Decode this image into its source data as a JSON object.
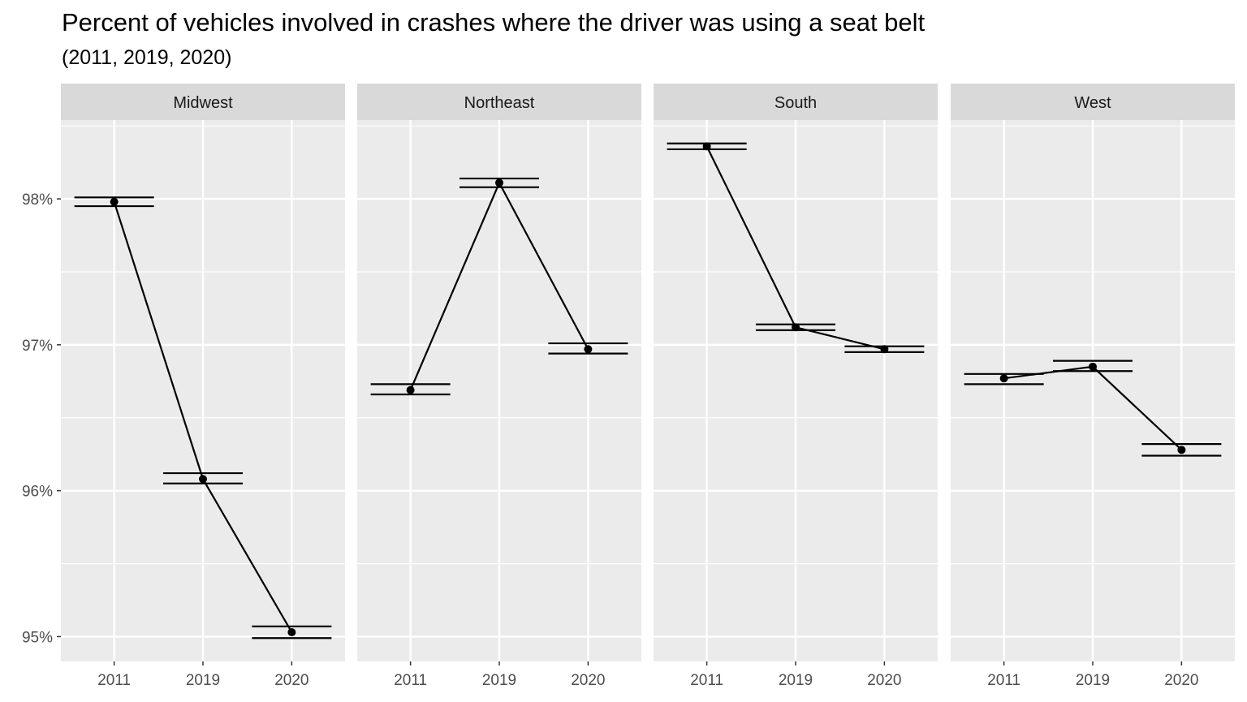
{
  "chart_data": {
    "type": "line",
    "title": "Percent of vehicles involved in crashes where the driver was using a seat belt",
    "subtitle": "(2011, 2019, 2020)",
    "xlabel": "",
    "ylabel": "",
    "categories": [
      "2011",
      "2019",
      "2020"
    ],
    "y_ticks": [
      95,
      96,
      97,
      98
    ],
    "y_tick_labels": [
      "95%",
      "96%",
      "97%",
      "98%"
    ],
    "ylim": [
      94.83,
      98.54
    ],
    "grid": true,
    "panels": [
      {
        "name": "Midwest",
        "values": [
          97.98,
          96.08,
          95.03
        ],
        "lower": [
          97.95,
          96.05,
          94.99
        ],
        "upper": [
          98.01,
          96.12,
          95.07
        ]
      },
      {
        "name": "Northeast",
        "values": [
          96.69,
          98.11,
          96.97
        ],
        "lower": [
          96.66,
          98.08,
          96.94
        ],
        "upper": [
          96.73,
          98.14,
          97.01
        ]
      },
      {
        "name": "South",
        "values": [
          98.36,
          97.12,
          96.97
        ],
        "lower": [
          98.34,
          97.1,
          96.95
        ],
        "upper": [
          98.38,
          97.14,
          96.99
        ]
      },
      {
        "name": "West",
        "values": [
          96.77,
          96.85,
          96.28
        ],
        "lower": [
          96.73,
          96.82,
          96.24
        ],
        "upper": [
          96.8,
          96.89,
          96.32
        ]
      }
    ],
    "colors": {
      "panel_background": "#ebebeb",
      "strip_background": "#d9d9d9",
      "grid": "#ffffff",
      "line": "#000000",
      "tick_text": "#4d4d4d"
    }
  }
}
